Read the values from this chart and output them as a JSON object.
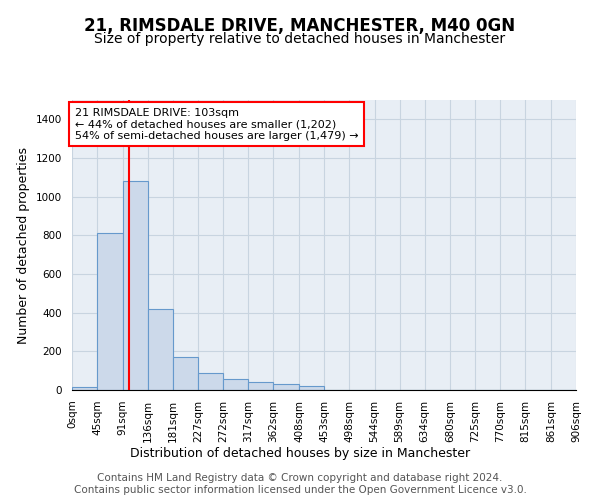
{
  "title": "21, RIMSDALE DRIVE, MANCHESTER, M40 0GN",
  "subtitle": "Size of property relative to detached houses in Manchester",
  "xlabel": "Distribution of detached houses by size in Manchester",
  "ylabel": "Number of detached properties",
  "bar_values": [
    18,
    810,
    1080,
    420,
    170,
    90,
    58,
    40,
    30,
    20,
    0,
    0,
    0,
    0,
    0,
    0,
    0,
    0,
    0,
    0
  ],
  "bin_edges": [
    0,
    45,
    91,
    136,
    181,
    227,
    272,
    317,
    362,
    408,
    453,
    498,
    544,
    589,
    634,
    680,
    725,
    770,
    815,
    861,
    906
  ],
  "bar_color": "#ccd9ea",
  "bar_edge_color": "#6699cc",
  "property_line_x": 103,
  "property_line_color": "red",
  "annotation_line1": "21 RIMSDALE DRIVE: 103sqm",
  "annotation_line2": "← 44% of detached houses are smaller (1,202)",
  "annotation_line3": "54% of semi-detached houses are larger (1,479) →",
  "ylim": [
    0,
    1500
  ],
  "yticks": [
    0,
    200,
    400,
    600,
    800,
    1000,
    1200,
    1400
  ],
  "xtick_labels": [
    "0sqm",
    "45sqm",
    "91sqm",
    "136sqm",
    "181sqm",
    "227sqm",
    "272sqm",
    "317sqm",
    "362sqm",
    "408sqm",
    "453sqm",
    "498sqm",
    "544sqm",
    "589sqm",
    "634sqm",
    "680sqm",
    "725sqm",
    "770sqm",
    "815sqm",
    "861sqm",
    "906sqm"
  ],
  "footer_text": "Contains HM Land Registry data © Crown copyright and database right 2024.\nContains public sector information licensed under the Open Government Licence v3.0.",
  "background_color": "#ffffff",
  "plot_bg_color": "#e8eef5",
  "grid_color": "#c8d4e0",
  "title_fontsize": 12,
  "subtitle_fontsize": 10,
  "axis_label_fontsize": 9,
  "tick_fontsize": 7.5,
  "footer_fontsize": 7.5,
  "annotation_fontsize": 8
}
